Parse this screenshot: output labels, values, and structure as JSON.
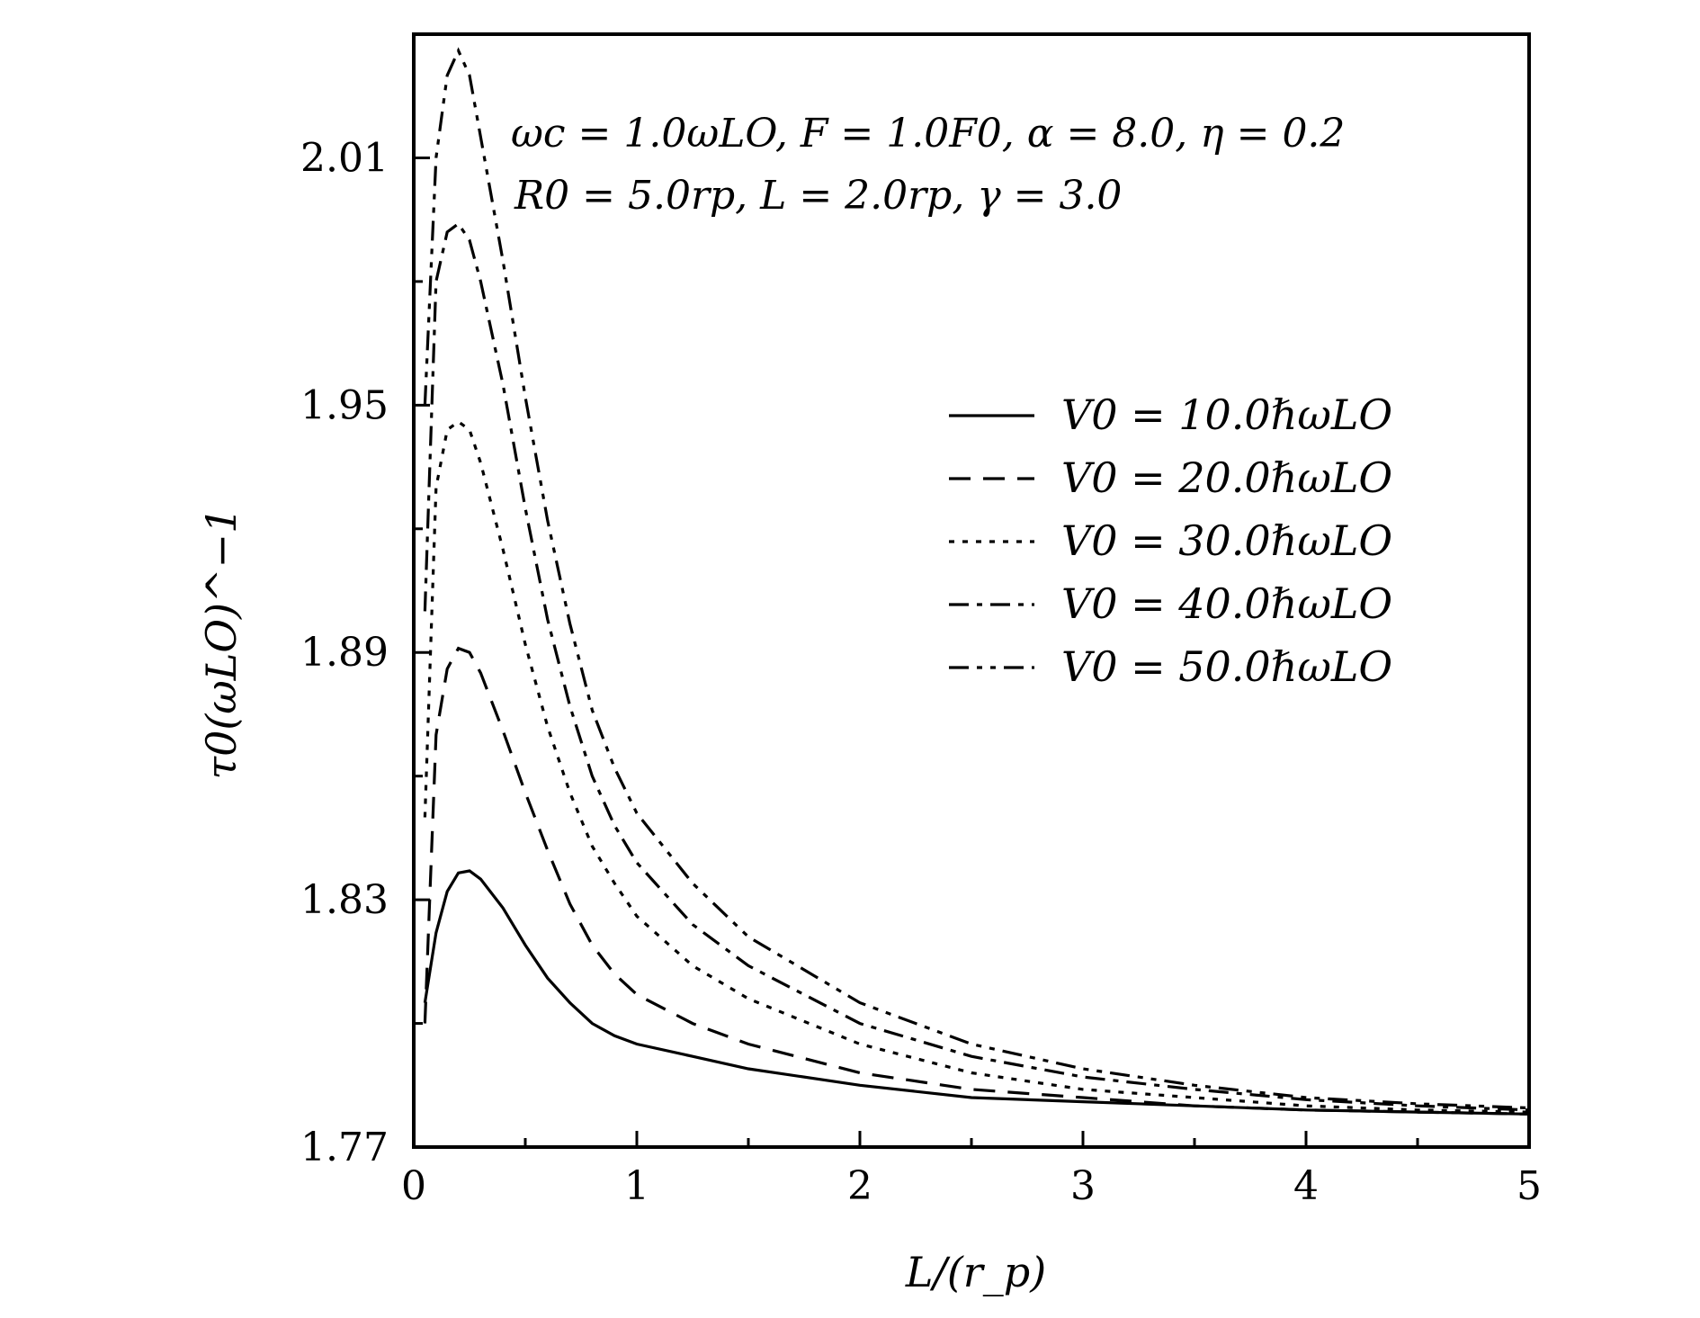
{
  "chart_data": {
    "type": "line",
    "title": "",
    "xlabel": "L/(r_p)",
    "ylabel": "τ0(ωLO)^−1",
    "xlim": [
      0,
      5
    ],
    "ylim": [
      1.77,
      2.04
    ],
    "x_ticks": [
      "0",
      "1",
      "2",
      "3",
      "4",
      "5"
    ],
    "y_ticks": [
      "1.77",
      "1.83",
      "1.89",
      "1.95",
      "2.01"
    ],
    "grid": false,
    "legend_position": "center-right",
    "annotations": [
      "ωc = 1.0ωLO, F = 1.0F0, α = 8.0, η = 0.2",
      "R0 = 5.0rp, L = 2.0rp, γ = 3.0"
    ],
    "series": [
      {
        "name": "V0 = 10.0ℏωLO",
        "dash": "solid",
        "x": [
          0.05,
          0.1,
          0.15,
          0.2,
          0.25,
          0.3,
          0.4,
          0.5,
          0.6,
          0.7,
          0.8,
          0.9,
          1.0,
          1.25,
          1.5,
          2.0,
          2.5,
          3.0,
          3.5,
          4.0,
          4.5,
          5.0
        ],
        "y": [
          1.805,
          1.822,
          1.832,
          1.8365,
          1.837,
          1.835,
          1.828,
          1.819,
          1.811,
          1.805,
          1.8,
          1.797,
          1.795,
          1.792,
          1.789,
          1.785,
          1.782,
          1.781,
          1.78,
          1.779,
          1.7785,
          1.778
        ]
      },
      {
        "name": "V0 = 20.0ℏωLO",
        "dash": "dash",
        "x": [
          0.05,
          0.1,
          0.15,
          0.2,
          0.25,
          0.3,
          0.4,
          0.5,
          0.6,
          0.7,
          0.8,
          0.9,
          1.0,
          1.25,
          1.5,
          2.0,
          2.5,
          3.0,
          3.5,
          4.0,
          4.5,
          5.0
        ],
        "y": [
          1.8,
          1.87,
          1.886,
          1.891,
          1.89,
          1.885,
          1.871,
          1.856,
          1.842,
          1.829,
          1.819,
          1.812,
          1.807,
          1.8,
          1.795,
          1.788,
          1.784,
          1.782,
          1.78,
          1.779,
          1.7785,
          1.778
        ]
      },
      {
        "name": "V0 = 30.0ℏωLO",
        "dash": "dot",
        "x": [
          0.05,
          0.1,
          0.15,
          0.2,
          0.25,
          0.3,
          0.4,
          0.5,
          0.6,
          0.7,
          0.8,
          0.9,
          1.0,
          1.25,
          1.5,
          2.0,
          2.5,
          3.0,
          3.5,
          4.0,
          4.5,
          5.0
        ],
        "y": [
          1.85,
          1.93,
          1.944,
          1.946,
          1.944,
          1.936,
          1.915,
          1.892,
          1.872,
          1.856,
          1.843,
          1.834,
          1.826,
          1.814,
          1.806,
          1.795,
          1.788,
          1.784,
          1.782,
          1.78,
          1.779,
          1.7785
        ]
      },
      {
        "name": "V0 = 40.0ℏωLO",
        "dash": "dashdot",
        "x": [
          0.05,
          0.1,
          0.15,
          0.2,
          0.25,
          0.3,
          0.4,
          0.5,
          0.6,
          0.7,
          0.8,
          0.9,
          1.0,
          1.25,
          1.5,
          2.0,
          2.5,
          3.0,
          3.5,
          4.0,
          4.5,
          5.0
        ],
        "y": [
          1.9,
          1.98,
          1.992,
          1.994,
          1.99,
          1.98,
          1.955,
          1.925,
          1.898,
          1.877,
          1.86,
          1.848,
          1.839,
          1.824,
          1.814,
          1.8,
          1.792,
          1.787,
          1.784,
          1.7815,
          1.78,
          1.779
        ]
      },
      {
        "name": "V0 = 50.0ℏωLO",
        "dash": "dashdotdot",
        "x": [
          0.05,
          0.1,
          0.15,
          0.2,
          0.25,
          0.3,
          0.4,
          0.5,
          0.6,
          0.7,
          0.8,
          0.9,
          1.0,
          1.25,
          1.5,
          2.0,
          2.5,
          3.0,
          3.5,
          4.0,
          4.5,
          5.0
        ],
        "y": [
          1.95,
          2.01,
          2.03,
          2.036,
          2.03,
          2.015,
          1.985,
          1.952,
          1.922,
          1.897,
          1.876,
          1.862,
          1.851,
          1.834,
          1.821,
          1.805,
          1.795,
          1.789,
          1.785,
          1.782,
          1.7805,
          1.7795
        ]
      }
    ]
  }
}
